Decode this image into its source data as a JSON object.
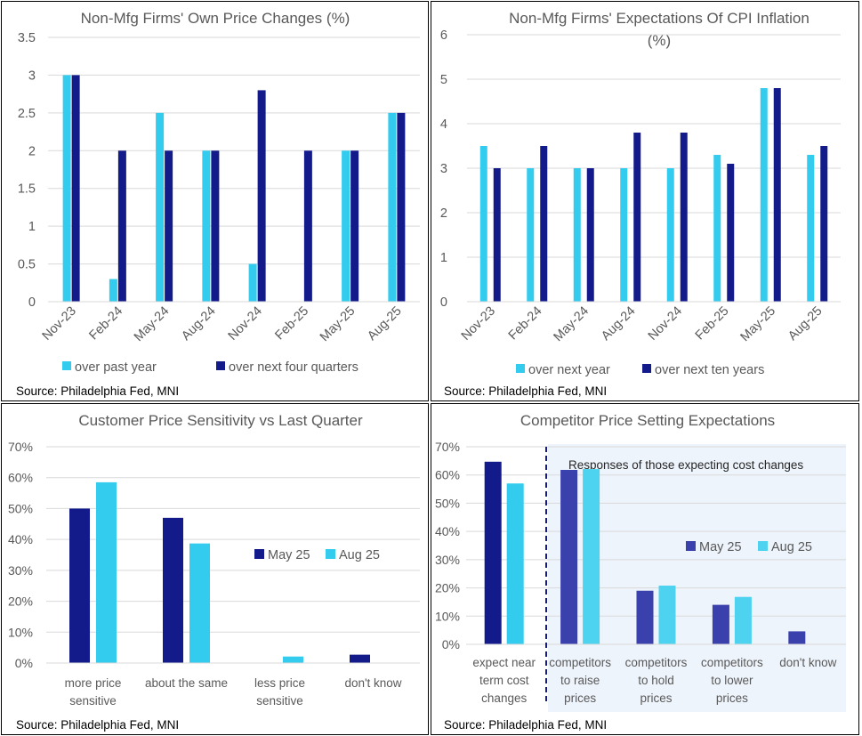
{
  "charts": [
    {
      "type": "bar",
      "title": "Non-Mfg Firms' Own Price Changes (%)",
      "categories": [
        "Nov-23",
        "Feb-24",
        "May-24",
        "Aug-24",
        "Nov-24",
        "Feb-25",
        "May-25",
        "Aug-25"
      ],
      "series": [
        {
          "name": "over past year",
          "color": "#33CCEE",
          "values": [
            3.0,
            0.3,
            2.5,
            2.0,
            0.5,
            null,
            2.0,
            2.5
          ]
        },
        {
          "name": "over next four quarters",
          "color": "#131B8A",
          "values": [
            3.0,
            2.0,
            2.0,
            2.0,
            2.8,
            2.0,
            2.0,
            2.5
          ]
        }
      ],
      "ylim": [
        0,
        3.5
      ],
      "yticks": [
        "0",
        "0.5",
        "1",
        "1.5",
        "2",
        "2.5",
        "3",
        "3.5"
      ],
      "source": "Source: Philadelphia Fed, MNI"
    },
    {
      "type": "bar",
      "title_lines": [
        "Non-Mfg Firms' Expectations Of CPI Inflation",
        "(%)"
      ],
      "categories": [
        "Nov-23",
        "Feb-24",
        "May-24",
        "Aug-24",
        "Nov-24",
        "Feb-25",
        "May-25",
        "Aug-25"
      ],
      "series": [
        {
          "name": "over next year",
          "color": "#33CCEE",
          "values": [
            3.5,
            3.0,
            3.0,
            3.0,
            3.0,
            3.3,
            4.8,
            3.3
          ]
        },
        {
          "name": "over next ten years",
          "color": "#131B8A",
          "values": [
            3.0,
            3.5,
            3.0,
            3.8,
            3.8,
            3.1,
            4.8,
            3.5
          ]
        }
      ],
      "ylim": [
        0,
        6
      ],
      "yticks": [
        "0",
        "1",
        "2",
        "3",
        "4",
        "5",
        "6"
      ],
      "source": "Source: Philadelphia Fed, MNI"
    },
    {
      "type": "bar",
      "title": "Customer Price Sensitivity vs Last Quarter",
      "categories": [
        [
          "more price",
          "sensitive"
        ],
        [
          "about the same"
        ],
        [
          "less price",
          "sensitive"
        ],
        [
          "don't know"
        ]
      ],
      "series": [
        {
          "name": "May 25",
          "color": "#131B8A",
          "values": [
            50.0,
            47.0,
            null,
            2.7
          ]
        },
        {
          "name": "Aug 25",
          "color": "#33CCEE",
          "values": [
            58.5,
            38.7,
            2.1,
            null
          ]
        }
      ],
      "ylim": [
        0,
        70
      ],
      "yticks": [
        "0%",
        "10%",
        "20%",
        "30%",
        "40%",
        "50%",
        "60%",
        "70%"
      ],
      "source": "Source: Philadelphia Fed, MNI"
    },
    {
      "type": "bar",
      "title": "Competitor Price Setting Expectations",
      "annotation": "Responses of those expecting cost changes",
      "categories": [
        [
          "expect near",
          "term cost",
          "changes"
        ],
        [
          "competitors",
          "to raise",
          "prices"
        ],
        [
          "competitors",
          "to hold",
          "prices"
        ],
        [
          "competitors",
          "to lower",
          "prices"
        ],
        [
          "don't know"
        ]
      ],
      "series": [
        {
          "name": "May 25",
          "color": "#3A41AD",
          "values": [
            64.7,
            61.8,
            19.0,
            14.0,
            4.6
          ]
        },
        {
          "name": "Aug 25",
          "color": "#4DD3F0",
          "values": [
            57.0,
            62.1,
            20.8,
            16.8,
            null
          ]
        }
      ],
      "first_category_colors": [
        "#131B8A",
        "#33CCEE"
      ],
      "ylim": [
        0,
        70
      ],
      "yticks": [
        "0%",
        "10%",
        "20%",
        "30%",
        "40%",
        "50%",
        "60%",
        "70%"
      ],
      "source": "Source: Philadelphia Fed, MNI"
    }
  ]
}
